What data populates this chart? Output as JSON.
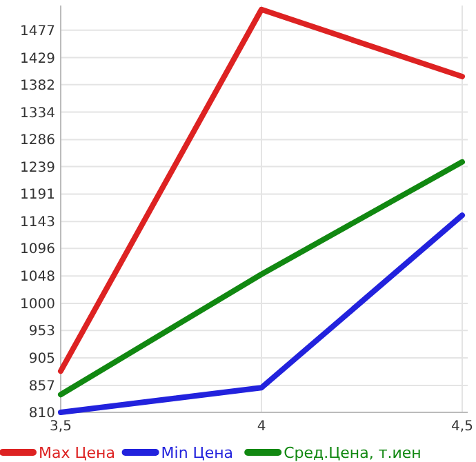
{
  "chart_data": {
    "type": "line",
    "categories": [
      "3,5",
      "4",
      "4,5"
    ],
    "series": [
      {
        "name": "Max Цена",
        "color": "#dd2222",
        "values": [
          882,
          1513,
          1396
        ]
      },
      {
        "name": "Min Цена",
        "color": "#2222dd",
        "values": [
          810,
          853,
          1154
        ]
      },
      {
        "name": "Сред.Цена, т.иен",
        "color": "#118811",
        "values": [
          841,
          1051,
          1247
        ]
      }
    ],
    "ylim": [
      810,
      1520
    ],
    "yticks": [
      810,
      857,
      905,
      953,
      1000,
      1048,
      1096,
      1143,
      1191,
      1239,
      1286,
      1334,
      1382,
      1429,
      1477
    ],
    "grid": true,
    "legend": "bottom",
    "marker": "none",
    "line_style": "solid"
  }
}
